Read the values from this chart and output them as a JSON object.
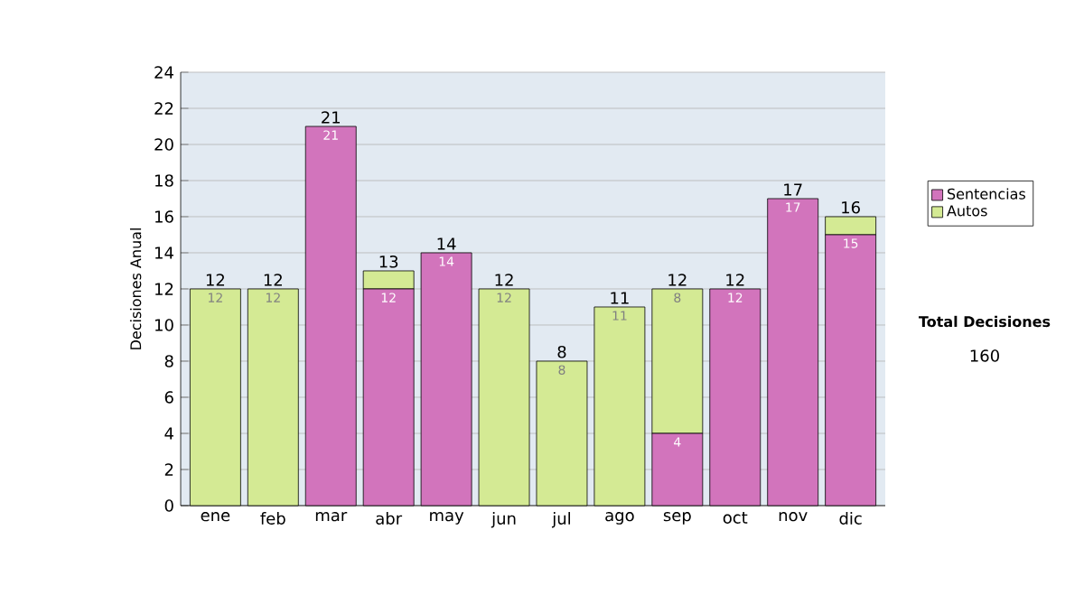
{
  "chart_data": {
    "type": "bar",
    "stacked": true,
    "ylabel": "Decisiones Anual",
    "categories": [
      "ene",
      "feb",
      "mar",
      "abr",
      "may",
      "jun",
      "jul",
      "ago",
      "sep",
      "oct",
      "nov",
      "dic"
    ],
    "series": [
      {
        "name": "Sentencias",
        "color": "#d274bc",
        "values": [
          0,
          0,
          21,
          12,
          14,
          0,
          0,
          0,
          4,
          12,
          17,
          15
        ],
        "value_labels": [
          null,
          null,
          "21",
          "12",
          "14",
          null,
          null,
          null,
          "4",
          "12",
          "17",
          "15"
        ]
      },
      {
        "name": "Autos",
        "color": "#d4ea94",
        "values": [
          12,
          12,
          0,
          1,
          0,
          12,
          8,
          11,
          8,
          0,
          0,
          1
        ],
        "value_labels": [
          "12",
          "12",
          null,
          null,
          null,
          "12",
          "8",
          "11",
          "8",
          null,
          null,
          null
        ]
      }
    ],
    "totals": [
      "12",
      "12",
      "21",
      "13",
      "14",
      "12",
      "8",
      "11",
      "12",
      "12",
      "17",
      "16"
    ],
    "ylim": [
      0,
      24
    ],
    "yticks": [
      0,
      2,
      4,
      6,
      8,
      10,
      12,
      14,
      16,
      18,
      20,
      22,
      24
    ],
    "grid": "y",
    "legend": "right",
    "annotations": [
      "Total Decisiones",
      "160"
    ]
  }
}
